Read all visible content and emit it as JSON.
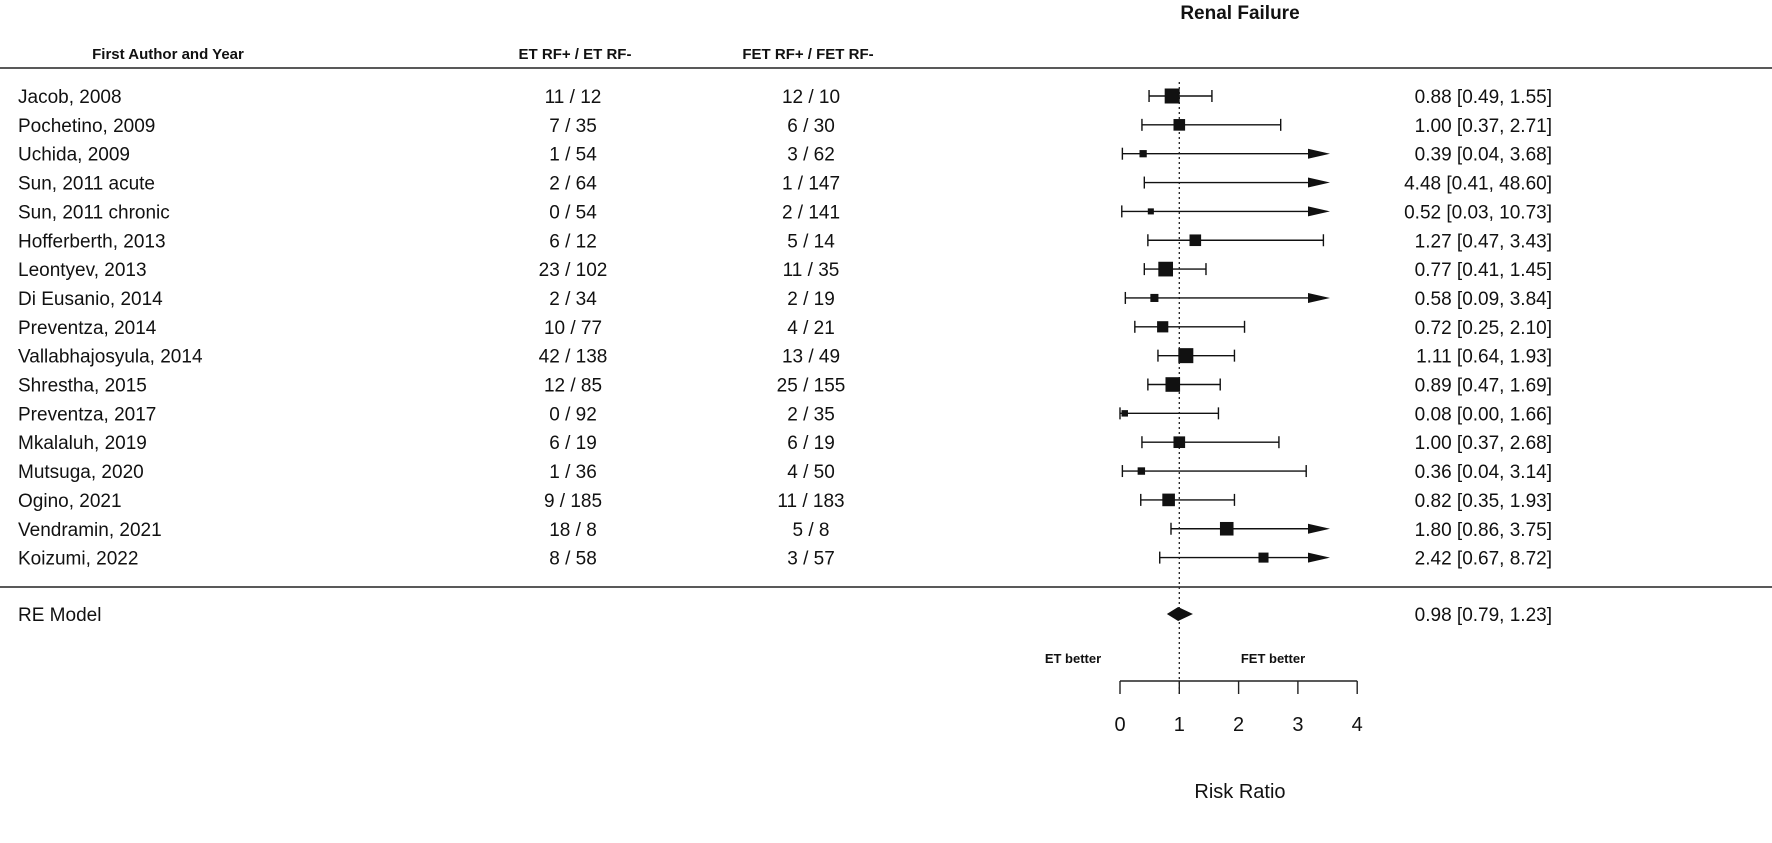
{
  "chart_data": {
    "type": "forest",
    "title": "Renal Failure",
    "columns": [
      "First Author and Year",
      "ET RF+ / ET RF-",
      "FET RF+ / FET RF-"
    ],
    "studies": [
      {
        "label": "Jacob, 2008",
        "et": "11 / 12",
        "fet": "12 / 10",
        "rr": 0.88,
        "lo": 0.49,
        "hi": 1.55,
        "ci_text": "0.88 [0.49,  1.55]"
      },
      {
        "label": "Pochetino, 2009",
        "et": "7 / 35",
        "fet": "6 / 30",
        "rr": 1.0,
        "lo": 0.37,
        "hi": 2.71,
        "ci_text": "1.00 [0.37,  2.71]"
      },
      {
        "label": "Uchida, 2009",
        "et": "1 / 54",
        "fet": "3 / 62",
        "rr": 0.39,
        "lo": 0.04,
        "hi": 3.68,
        "ci_text": "0.39 [0.04,  3.68]"
      },
      {
        "label": "Sun, 2011 acute",
        "et": "2 / 64",
        "fet": "1 / 147",
        "rr": 4.48,
        "lo": 0.41,
        "hi": 48.6,
        "ci_text": "4.48 [0.41, 48.60]"
      },
      {
        "label": "Sun, 2011 chronic",
        "et": "0 / 54",
        "fet": "2 / 141",
        "rr": 0.52,
        "lo": 0.03,
        "hi": 10.73,
        "ci_text": "0.52 [0.03, 10.73]"
      },
      {
        "label": "Hofferberth, 2013",
        "et": "6 / 12",
        "fet": "5 / 14",
        "rr": 1.27,
        "lo": 0.47,
        "hi": 3.43,
        "ci_text": "1.27 [0.47,  3.43]"
      },
      {
        "label": "Leontyev, 2013",
        "et": "23 / 102",
        "fet": "11 / 35",
        "rr": 0.77,
        "lo": 0.41,
        "hi": 1.45,
        "ci_text": "0.77 [0.41,  1.45]"
      },
      {
        "label": "Di Eusanio, 2014",
        "et": "2 / 34",
        "fet": "2 / 19",
        "rr": 0.58,
        "lo": 0.09,
        "hi": 3.84,
        "ci_text": "0.58 [0.09,  3.84]"
      },
      {
        "label": "Preventza, 2014",
        "et": "10 / 77",
        "fet": "4 / 21",
        "rr": 0.72,
        "lo": 0.25,
        "hi": 2.1,
        "ci_text": "0.72 [0.25,  2.10]"
      },
      {
        "label": "Vallabhajosyula, 2014",
        "et": "42 / 138",
        "fet": "13 / 49",
        "rr": 1.11,
        "lo": 0.64,
        "hi": 1.93,
        "ci_text": "1.11 [0.64,  1.93]"
      },
      {
        "label": "Shrestha, 2015",
        "et": "12 / 85",
        "fet": "25 / 155",
        "rr": 0.89,
        "lo": 0.47,
        "hi": 1.69,
        "ci_text": "0.89 [0.47,  1.69]"
      },
      {
        "label": "Preventza, 2017",
        "et": "0 / 92",
        "fet": "2 / 35",
        "rr": 0.08,
        "lo": 0.0,
        "hi": 1.66,
        "ci_text": "0.08 [0.00,  1.66]"
      },
      {
        "label": "Mkalaluh, 2019",
        "et": "6 / 19",
        "fet": "6 / 19",
        "rr": 1.0,
        "lo": 0.37,
        "hi": 2.68,
        "ci_text": "1.00 [0.37,  2.68]"
      },
      {
        "label": "Mutsuga, 2020",
        "et": "1 / 36",
        "fet": "4 / 50",
        "rr": 0.36,
        "lo": 0.04,
        "hi": 3.14,
        "ci_text": "0.36 [0.04,  3.14]"
      },
      {
        "label": "Ogino, 2021",
        "et": "9 / 185",
        "fet": "11 / 183",
        "rr": 0.82,
        "lo": 0.35,
        "hi": 1.93,
        "ci_text": "0.82 [0.35,  1.93]"
      },
      {
        "label": "Vendramin, 2021",
        "et": "18 / 8",
        "fet": "5 / 8",
        "rr": 1.8,
        "lo": 0.86,
        "hi": 3.75,
        "ci_text": "1.80 [0.86,  3.75]"
      },
      {
        "label": "Koizumi, 2022",
        "et": "8 / 58",
        "fet": "3 / 57",
        "rr": 2.42,
        "lo": 0.67,
        "hi": 8.72,
        "ci_text": "2.42 [0.67,  8.72]"
      }
    ],
    "summary": {
      "label": "RE Model",
      "rr": 0.98,
      "lo": 0.79,
      "hi": 1.23,
      "ci_text": "0.98 [0.79,  1.23]"
    },
    "left_annotation": "ET better",
    "right_annotation": "FET better",
    "xlabel": "Risk Ratio",
    "xticks": [
      0,
      1,
      2,
      3,
      4
    ],
    "xlim": [
      0,
      4
    ],
    "reference_line": 1,
    "color": "#000000"
  }
}
